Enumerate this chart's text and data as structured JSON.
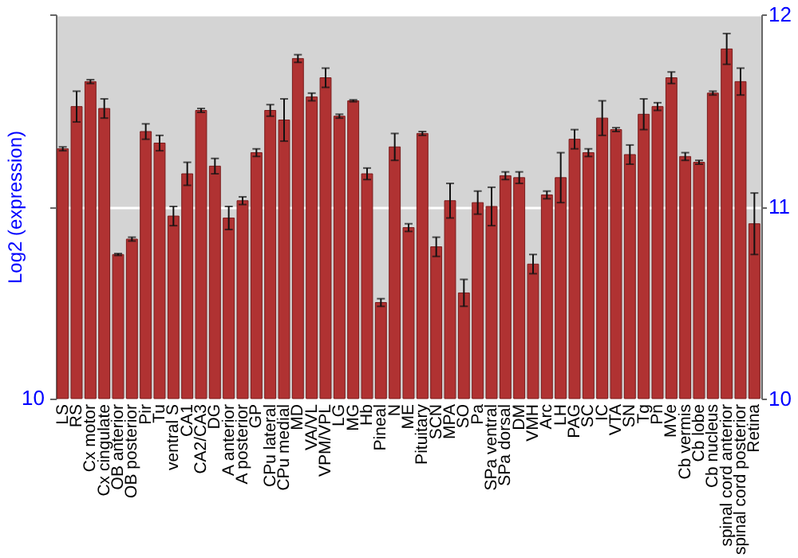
{
  "chart_data": {
    "type": "bar",
    "ylabel": "Log2 (expression)",
    "annotations": [
      "10"
    ],
    "categories": [
      "LS",
      "RS",
      "Cx motor",
      "Cx cingulate",
      "OB anterior",
      "OB posterior",
      "Pir",
      "Tu",
      "ventral S",
      "CA1",
      "CA2/CA3",
      "DG",
      "A anterior",
      "A posterior",
      "GP",
      "CPu lateral",
      "CPu medial",
      "MD",
      "VA/VL",
      "VPM/VPL",
      "LG",
      "MG",
      "Hb",
      "Pineal",
      "N",
      "ME",
      "Pituitary",
      "SCN",
      "MPA",
      "SO",
      "Pa",
      "SPa ventral",
      "SPa dorsal",
      "DM",
      "VMH",
      "Arc",
      "LH",
      "PAG",
      "SC",
      "IC",
      "VTA",
      "SN",
      "Tg",
      "Pn",
      "MVe",
      "Cb vermis",
      "Cb lobe",
      "Cb nucleus",
      "spinal cord anterior",
      "spinal cord posterior",
      "Retina"
    ],
    "series": [
      {
        "color": "#b03232",
        "axis": "y2",
        "values": [
          11.3,
          11.52,
          11.65,
          11.51,
          10.75,
          10.83,
          11.39,
          11.33,
          10.95,
          11.17,
          11.5,
          11.21,
          10.94,
          11.03,
          11.28,
          11.5,
          11.45,
          11.77,
          11.57,
          11.67,
          11.47,
          11.55,
          11.17,
          10.5,
          11.31,
          10.89,
          11.38,
          10.79,
          11.03,
          10.55,
          11.02,
          11.0,
          11.16,
          11.15,
          10.7,
          11.06,
          11.15,
          11.35,
          11.28,
          11.46,
          11.4,
          11.27,
          11.48,
          11.52,
          11.67,
          11.26,
          11.23,
          11.59,
          11.82,
          11.65,
          10.91
        ],
        "errors": [
          0.01,
          0.08,
          0.01,
          0.05,
          0.005,
          0.01,
          0.04,
          0.04,
          0.05,
          0.06,
          0.01,
          0.04,
          0.06,
          0.02,
          0.02,
          0.03,
          0.11,
          0.02,
          0.02,
          0.05,
          0.01,
          0.005,
          0.03,
          0.02,
          0.07,
          0.02,
          0.01,
          0.05,
          0.09,
          0.07,
          0.06,
          0.1,
          0.02,
          0.03,
          0.05,
          0.02,
          0.13,
          0.05,
          0.02,
          0.09,
          0.01,
          0.05,
          0.08,
          0.02,
          0.03,
          0.02,
          0.01,
          0.01,
          0.08,
          0.07,
          0.16
        ]
      }
    ],
    "y2lim": [
      10,
      12
    ],
    "y2ticks": [
      10,
      11,
      12
    ],
    "grid": "y"
  }
}
